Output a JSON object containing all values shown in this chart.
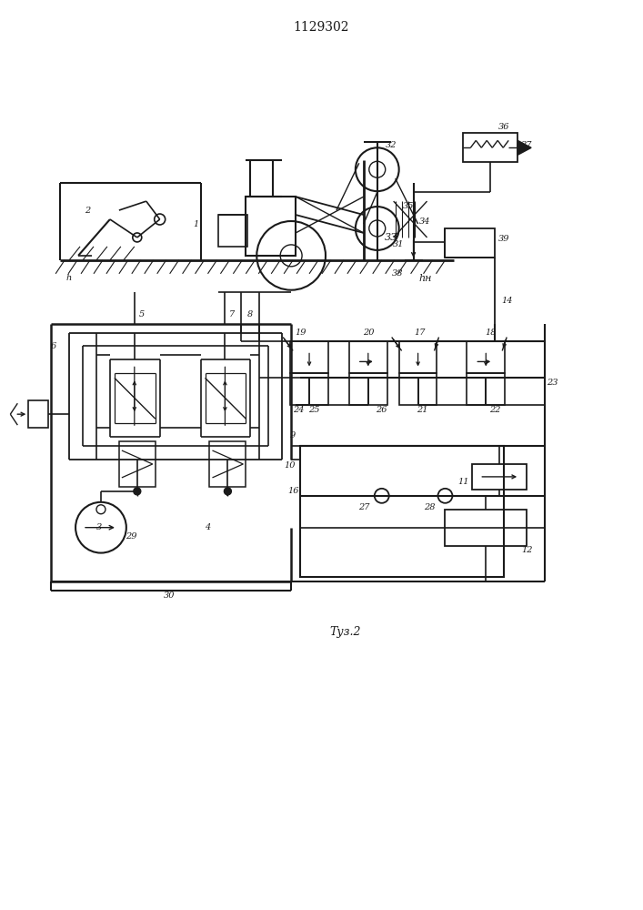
{
  "title": "1129302",
  "caption": "Τуз.2",
  "bg_color": "#f5f5f0",
  "line_color": "#1a1a1a",
  "fig_width": 7.07,
  "fig_height": 10.0,
  "dpi": 100
}
